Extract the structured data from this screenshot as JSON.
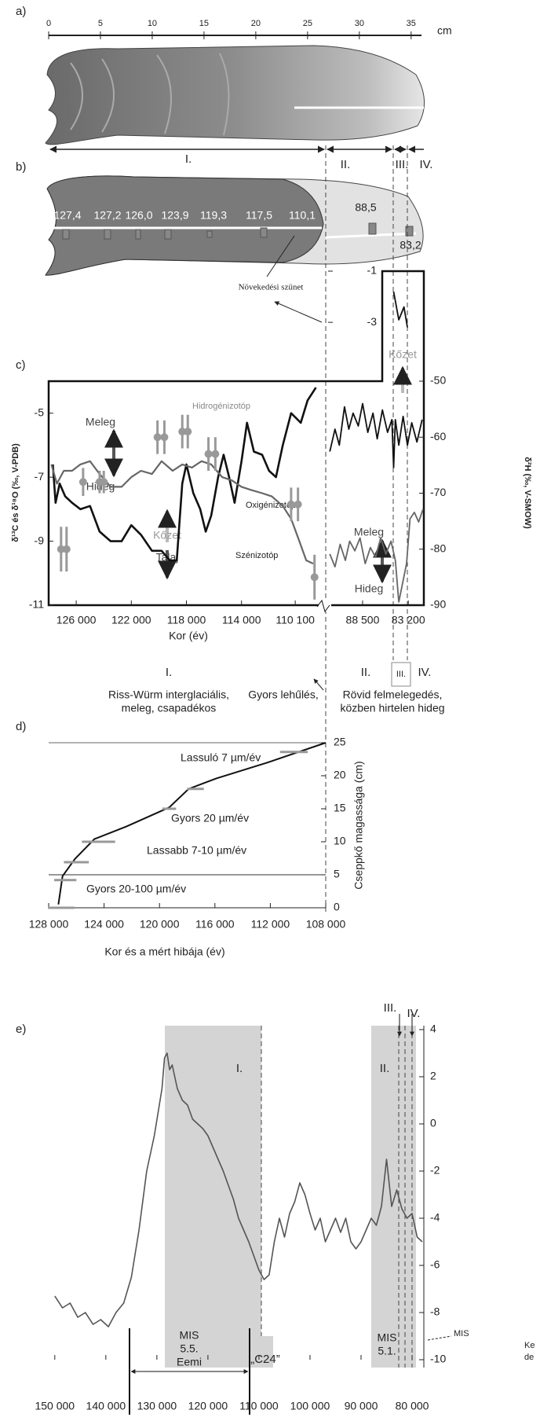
{
  "panel_a": {
    "label": "a)",
    "ruler": {
      "unit": "cm",
      "xlim": [
        0,
        36
      ],
      "ticks": [
        0,
        5,
        10,
        15,
        20,
        25,
        30,
        35
      ]
    },
    "sections": [
      "I.",
      "II.",
      "III.",
      "IV."
    ]
  },
  "panel_b": {
    "label": "b)",
    "ages": [
      "127,4",
      "127,2",
      "126,0",
      "123,9",
      "119,3",
      "117,5",
      "110,1",
      "88,5",
      "83,2"
    ],
    "note": "Növekedési szünet"
  },
  "periods": {
    "labels": [
      "I.",
      "II.",
      "III.",
      "IV."
    ],
    "descriptions": [
      "Riss-Würm interglaciális,",
      "meleg, csapadékos",
      "Gyors lehűlés,",
      "Rövid felmelegedés,",
      "közben hirtelen hideg"
    ]
  },
  "chart_data": [
    {
      "type": "line",
      "label": "c)",
      "xlabel": "Kor (év)",
      "ylabel": "δ¹³C és δ¹⁸O (‰, V-PDB)",
      "y2label": "δ²H (‰, V-SMOW)",
      "xlim": [
        128000,
        108000
      ],
      "xticks": [
        {
          "value": 126000,
          "label": "126 000"
        },
        {
          "value": 122000,
          "label": "122 000"
        },
        {
          "value": 118000,
          "label": "118 000"
        },
        {
          "value": 114000,
          "label": "114 000"
        },
        {
          "value": 110100,
          "label": "110 100"
        }
      ],
      "ylim": [
        -11,
        -4
      ],
      "yticks": [
        -11,
        -9,
        -7,
        -5
      ],
      "y2lim": [
        -90,
        -50
      ],
      "y2ticks": [
        -90,
        -80,
        -70,
        -60,
        -50
      ],
      "annotations": [
        "Meleg",
        "Hideg",
        "Kőzet",
        "Talaj"
      ],
      "series": [
        {
          "name": "Szénizotóp",
          "color": "#111111",
          "line_width": 2.6,
          "x": [
            127700,
            127500,
            127200,
            126800,
            126300,
            125700,
            125000,
            124300,
            123500,
            122700,
            122000,
            121300,
            120500,
            119800,
            119200,
            118700,
            118300,
            118000,
            117500,
            117000,
            116600,
            116200,
            115700,
            115300,
            114900,
            114500,
            114000,
            113600,
            113100,
            112500,
            112000,
            111500,
            111000,
            110400,
            109700,
            109200,
            108600
          ],
          "values": [
            -6.6,
            -7.8,
            -7.2,
            -7.6,
            -7.8,
            -8.0,
            -7.9,
            -8.7,
            -9.0,
            -9.0,
            -8.5,
            -8.8,
            -9.3,
            -9.3,
            -9.6,
            -9.6,
            -7.2,
            -6.6,
            -7.5,
            -8.0,
            -8.7,
            -8.2,
            -7.0,
            -6.3,
            -7.0,
            -7.8,
            -6.5,
            -5.3,
            -6.2,
            -6.3,
            -6.8,
            -7.0,
            -6.0,
            -5.0,
            -5.3,
            -4.6,
            -4.2
          ]
        },
        {
          "name": "Oxigénizotóp",
          "color": "#666666",
          "line_width": 2.2,
          "x": [
            127800,
            127400,
            126900,
            126300,
            125700,
            125000,
            124300,
            123500,
            122700,
            122000,
            121300,
            120500,
            119800,
            119000,
            118300,
            117600,
            116900,
            116200,
            115400,
            114700,
            114000,
            113300,
            112500,
            111800,
            111000,
            110400,
            109800,
            109300,
            108800
          ],
          "values": [
            -6.6,
            -7.2,
            -6.8,
            -6.8,
            -6.6,
            -6.5,
            -6.9,
            -7.3,
            -7.3,
            -7.0,
            -6.8,
            -6.9,
            -6.5,
            -6.8,
            -6.6,
            -6.7,
            -6.5,
            -6.6,
            -7.0,
            -7.1,
            -7.3,
            -7.4,
            -7.5,
            -7.6,
            -7.9,
            -8.3,
            -9.0,
            -9.6,
            -9.7
          ]
        },
        {
          "name": "Hidrogénizotóp",
          "color": "#999999",
          "axis": "y2",
          "marker": true,
          "x": [
            127100,
            126700,
            125500,
            124300,
            124000,
            120100,
            119600,
            118300,
            117900,
            116400,
            115900,
            110400,
            109900,
            108700
          ],
          "values": [
            -80,
            -80,
            -68,
            -68,
            -68,
            -60,
            -60,
            -59,
            -59,
            -63,
            -63,
            -72,
            -72,
            -85
          ],
          "errors": [
            4,
            4,
            2.5,
            2,
            2,
            3,
            3,
            3,
            3,
            3,
            3,
            3,
            3,
            4
          ]
        }
      ]
    },
    {
      "type": "line",
      "xlim": [
        92500,
        81400
      ],
      "xticks": [
        {
          "value": 88500,
          "label": "88 500"
        },
        {
          "value": 83200,
          "label": "83 200"
        }
      ],
      "ylim": [
        -11,
        -4
      ],
      "annotations": [
        "Meleg",
        "Hideg"
      ],
      "series": [
        {
          "color": "#111111",
          "line_width": 1.8,
          "x": [
            92300,
            91700,
            91200,
            90600,
            90100,
            89600,
            89000,
            88500,
            87900,
            87300,
            86800,
            86200,
            85600,
            85100,
            84900,
            84700,
            84300,
            83800,
            83300,
            82800,
            82200,
            81600
          ],
          "values": [
            -6.2,
            -5.5,
            -6.0,
            -4.8,
            -5.5,
            -5.0,
            -5.4,
            -4.7,
            -5.6,
            -5.0,
            -5.8,
            -4.9,
            -5.6,
            -5.2,
            -6.7,
            -5.2,
            -6.0,
            -5.1,
            -6.0,
            -5.3,
            -5.9,
            -5.2
          ]
        },
        {
          "color": "#666666",
          "line_width": 1.8,
          "x": [
            92300,
            91700,
            91100,
            90500,
            90000,
            89400,
            88800,
            88200,
            87600,
            87000,
            86400,
            85800,
            85200,
            84700,
            84300,
            83400,
            83000,
            82500,
            82000,
            81500
          ],
          "values": [
            -9.4,
            -9.8,
            -9.1,
            -9.6,
            -9.0,
            -9.3,
            -8.9,
            -9.7,
            -9.2,
            -9.5,
            -8.9,
            -9.4,
            -9.0,
            -9.6,
            -10.9,
            -9.7,
            -8.3,
            -8.1,
            -8.4,
            -8.0
          ]
        }
      ]
    },
    {
      "type": "line",
      "xlim": [
        92500,
        81400
      ],
      "ylim": [
        -5.3,
        -1
      ],
      "yticks": [
        -1,
        -3
      ],
      "annotations": [
        "Kőzet"
      ],
      "series": [
        {
          "color": "#111111",
          "line_width": 1.8,
          "x": [
            84900,
            84300,
            83700,
            83300
          ],
          "values": [
            -1.8,
            -2.9,
            -2.4,
            -3.2
          ]
        }
      ]
    },
    {
      "type": "line",
      "label": "d)",
      "xlabel": "Kor és a mért hibája (év)",
      "ylabel": "Cseppkő magassága (cm)",
      "xlim": [
        128000,
        108000
      ],
      "xticks": [
        {
          "value": 128000,
          "label": "128 000"
        },
        {
          "value": 124000,
          "label": "124 000"
        },
        {
          "value": 120000,
          "label": "120 000"
        },
        {
          "value": 116000,
          "label": "116 000"
        },
        {
          "value": 112000,
          "label": "112 000"
        },
        {
          "value": 108000,
          "label": "108 000"
        }
      ],
      "ylim": [
        0,
        25
      ],
      "yticks": [
        0,
        5,
        10,
        15,
        20,
        25
      ],
      "annotations": [
        "Lassuló 7 µm/év",
        "Gyors 20 µm/év",
        "Lassabb 7-10 µm/év",
        "Gyors 20-100 µm/év"
      ],
      "series": [
        {
          "color": "#111111",
          "line_width": 2,
          "x": [
            127300,
            127000,
            126100,
            124700,
            122400,
            119300,
            117900,
            115900,
            112200,
            108000
          ],
          "values": [
            0.5,
            4.8,
            7.4,
            10.4,
            12.3,
            15.2,
            18,
            19.6,
            22,
            25
          ]
        },
        {
          "color": "#999999",
          "x": [
            127100,
            126800,
            126000,
            124400,
            119300,
            117400,
            110300
          ],
          "values": [
            0,
            4.2,
            6.9,
            10,
            15,
            18,
            23.6
          ],
          "xerr": [
            950,
            800,
            900,
            1200,
            500,
            600,
            1000
          ]
        }
      ]
    },
    {
      "type": "line",
      "label": "e)",
      "xlim": [
        151200,
        77700
      ],
      "xticks": [
        {
          "value": 150000,
          "label": "150 000"
        },
        {
          "value": 140000,
          "label": "140 000"
        },
        {
          "value": 130000,
          "label": "130 000"
        },
        {
          "value": 120000,
          "label": "120 000"
        },
        {
          "value": 110000,
          "label": "110 000"
        },
        {
          "value": 100000,
          "label": "100 000"
        },
        {
          "value": 90000,
          "label": "90 000"
        },
        {
          "value": 80000,
          "label": "80 000"
        }
      ],
      "ylim": [
        -10,
        4
      ],
      "yticks": [
        -10,
        -8,
        -6,
        -4,
        -2,
        0,
        2,
        4
      ],
      "annotations": [
        "I.",
        "II.",
        "III.",
        "IV.",
        "MIS",
        "5.5.",
        "Eemi",
        "„C24”",
        "MIS",
        "5.1.",
        "MIS",
        "Ke",
        "de"
      ],
      "series": [
        {
          "color": "#555555",
          "line_width": 1.6,
          "x": [
            150000,
            148500,
            147000,
            145500,
            144000,
            142500,
            141000,
            139500,
            138000,
            136500,
            135000,
            133500,
            132000,
            130500,
            129000,
            128500,
            128000,
            127500,
            127000,
            126000,
            125000,
            124000,
            123000,
            122000,
            121000,
            120000,
            119000,
            118000,
            117000,
            116000,
            115000,
            114000,
            113000,
            112000,
            111000,
            110000,
            109000,
            108000,
            107000,
            106000,
            105000,
            104000,
            103000,
            102000,
            101000,
            100000,
            99000,
            98000,
            97000,
            96000,
            95000,
            94000,
            93000,
            92000,
            91000,
            90000,
            89000,
            88000,
            87000,
            86000,
            85000,
            84000,
            83000,
            82000,
            81000,
            80000,
            79000,
            78000
          ],
          "values": [
            -7.3,
            -7.8,
            -7.6,
            -8.2,
            -8.0,
            -8.5,
            -8.3,
            -8.6,
            -8.0,
            -7.6,
            -6.5,
            -4.5,
            -2.0,
            -0.5,
            1.5,
            2.8,
            3.0,
            2.3,
            2.5,
            1.5,
            1.0,
            0.8,
            0.2,
            0,
            -0.2,
            -0.5,
            -1.0,
            -1.5,
            -2.0,
            -2.6,
            -3.2,
            -4.0,
            -4.5,
            -5.0,
            -5.6,
            -6.2,
            -6.6,
            -6.4,
            -5.0,
            -4.0,
            -4.8,
            -3.8,
            -3.3,
            -2.5,
            -3.0,
            -3.8,
            -4.5,
            -4.0,
            -5.0,
            -4.5,
            -4.0,
            -4.6,
            -4.0,
            -5.0,
            -5.3,
            -5.0,
            -4.5,
            -4.0,
            -4.3,
            -3.5,
            -1.5,
            -3.5,
            -2.8,
            -3.6,
            -4.0,
            -3.8,
            -4.8,
            -5.0
          ]
        }
      ]
    }
  ]
}
